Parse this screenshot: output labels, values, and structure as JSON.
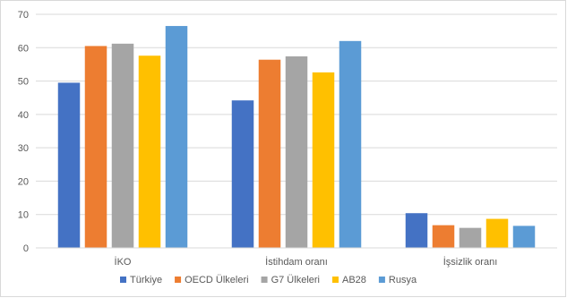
{
  "chart_data": {
    "type": "bar",
    "categories": [
      "İKO",
      "İstihdam oranı",
      "İşsizlik oranı"
    ],
    "series": [
      {
        "name": "Türkiye",
        "values": [
          49.5,
          44.2,
          10.4
        ],
        "color": "#4472C4"
      },
      {
        "name": "OECD Ülkeleri",
        "values": [
          60.5,
          56.4,
          6.8
        ],
        "color": "#ED7D31"
      },
      {
        "name": "G7 Ülkeleri",
        "values": [
          61.2,
          57.4,
          6.0
        ],
        "color": "#A5A5A5"
      },
      {
        "name": "AB28",
        "values": [
          57.6,
          52.6,
          8.7
        ],
        "color": "#FFC000"
      },
      {
        "name": "Rusya",
        "values": [
          66.5,
          62.0,
          6.6
        ],
        "color": "#5B9BD5"
      }
    ],
    "ylim": [
      0,
      70
    ],
    "yticks": [
      0,
      10,
      20,
      30,
      40,
      50,
      60,
      70
    ],
    "grid": true,
    "legend": "bottom"
  }
}
